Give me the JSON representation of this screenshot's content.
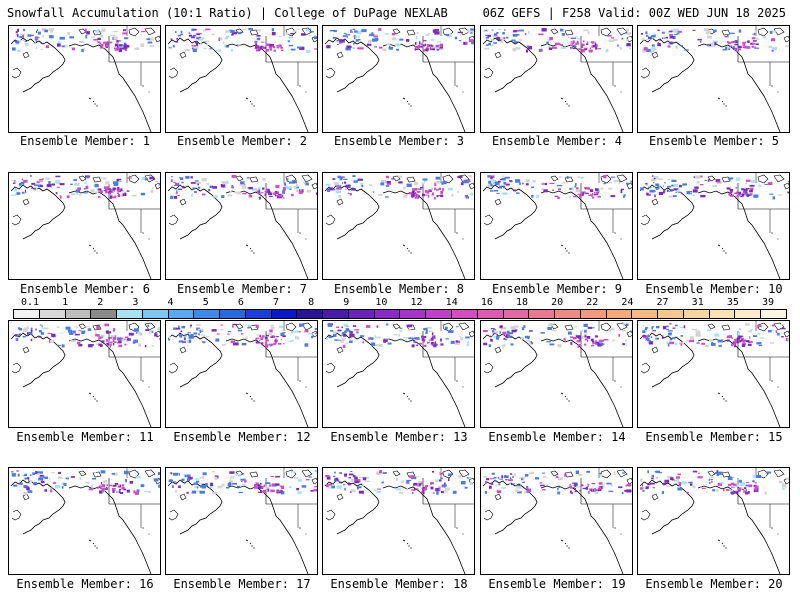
{
  "header": {
    "left": "Snowfall Accumulation (10:1 Ratio) | College of DuPage NEXLAB",
    "right": "06Z GEFS | F258 Valid: 00Z WED JUN 18 2025"
  },
  "panels": [
    {
      "label": "Ensemble Member: 1"
    },
    {
      "label": "Ensemble Member: 2"
    },
    {
      "label": "Ensemble Member: 3"
    },
    {
      "label": "Ensemble Member: 4"
    },
    {
      "label": "Ensemble Member: 5"
    },
    {
      "label": "Ensemble Member: 6"
    },
    {
      "label": "Ensemble Member: 7"
    },
    {
      "label": "Ensemble Member: 8"
    },
    {
      "label": "Ensemble Member: 9"
    },
    {
      "label": "Ensemble Member: 10"
    },
    {
      "label": "Ensemble Member: 11"
    },
    {
      "label": "Ensemble Member: 12"
    },
    {
      "label": "Ensemble Member: 13"
    },
    {
      "label": "Ensemble Member: 14"
    },
    {
      "label": "Ensemble Member: 15"
    },
    {
      "label": "Ensemble Member: 16"
    },
    {
      "label": "Ensemble Member: 17"
    },
    {
      "label": "Ensemble Member: 18"
    },
    {
      "label": "Ensemble Member: 19"
    },
    {
      "label": "Ensemble Member: 20"
    }
  ],
  "colorbar": {
    "labels": [
      "0.1",
      "1",
      "2",
      "3",
      "4",
      "5",
      "6",
      "7",
      "8",
      "9",
      "10",
      "12",
      "14",
      "16",
      "18",
      "20",
      "22",
      "24",
      "27",
      "31",
      "35",
      "39"
    ],
    "colors": [
      "#f2f2f2",
      "#d9d9d9",
      "#bdbdbd",
      "#8a8a8a",
      "#a7e3f5",
      "#7fc6f2",
      "#5ca8ee",
      "#3f8ae6",
      "#2a68de",
      "#1b3fd6",
      "#0a18c9",
      "#2a1494",
      "#4a1aa8",
      "#6a22b8",
      "#8a2ac4",
      "#a534cc",
      "#c040c8",
      "#d24ec0",
      "#de5ab4",
      "#e468a6",
      "#e87896",
      "#ec8a88",
      "#f09a7e",
      "#f2aa7a",
      "#f4ba82",
      "#f6c890",
      "#f8d6a0",
      "#fae2b4",
      "#fceccc",
      "#fef5e2"
    ]
  },
  "legend_colors": {
    "light_gray": "#d4d4d4",
    "blue": "#4a7dde",
    "light_blue": "#a7e3f5",
    "purple": "#7a2bb8",
    "magenta": "#d04ec4"
  }
}
